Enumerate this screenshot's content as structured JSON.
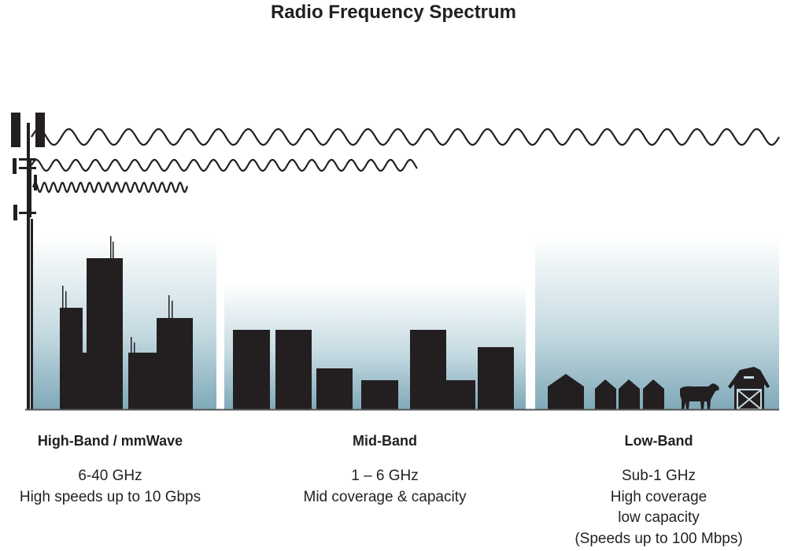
{
  "title": "Radio Frequency Spectrum",
  "colors": {
    "ink": "#231f20",
    "sky_bottom": "#7fa9b8",
    "sky_top": "#ffffff"
  },
  "bands": [
    {
      "name": "High-Band / mmWave",
      "lines": [
        "6-40 GHz",
        "High speeds up to 10 Gbps"
      ]
    },
    {
      "name": "Mid-Band",
      "lines": [
        "1 – 6 GHz",
        "Mid coverage & capacity"
      ]
    },
    {
      "name": "Low-Band",
      "lines": [
        "Sub-1 GHz",
        "High coverage",
        "low capacity",
        "(Speeds up to 100 Mbps)"
      ]
    }
  ],
  "icons": [
    "cell-tower-icon",
    "city-skyline-icon",
    "suburb-skyline-icon",
    "farm-houses-icon",
    "cow-icon",
    "barn-icon"
  ]
}
